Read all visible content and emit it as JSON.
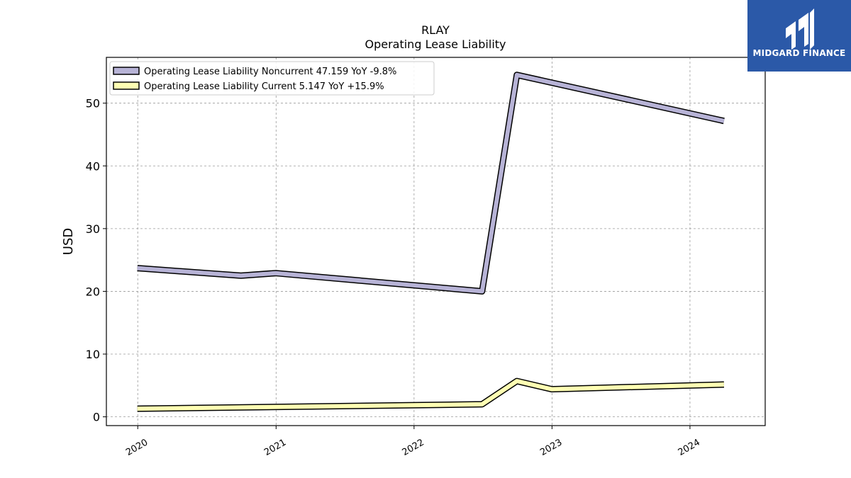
{
  "brand": {
    "name": "MIDGARD FINANCE",
    "logo_icon": "midgard-logo-icon",
    "background": "#2b59a8"
  },
  "chart_data": {
    "type": "line",
    "title": "RLAY",
    "subtitle": "Operating Lease Liability",
    "xlabel": "",
    "ylabel": "USD",
    "x_ticks": [
      "2020",
      "2021",
      "2022",
      "2023",
      "2024"
    ],
    "y_ticks": [
      0,
      10,
      20,
      30,
      40,
      50
    ],
    "xlim": [
      "2019-10-10",
      "2024-07-18"
    ],
    "ylim": [
      -1.4,
      57.3
    ],
    "grid": true,
    "legend_position": "top-left",
    "series": [
      {
        "name": "Operating Lease Liability Noncurrent",
        "legend_label": "Operating Lease Liability Noncurrent  47.159 YoY -9.8%",
        "color": "#b7b3d6",
        "points": [
          [
            "2019-12-31",
            23.7
          ],
          [
            "2020-09-30",
            22.5
          ],
          [
            "2020-12-31",
            22.9
          ],
          [
            "2022-06-30",
            20.0
          ],
          [
            "2022-09-30",
            54.5
          ],
          [
            "2024-03-31",
            47.159
          ]
        ]
      },
      {
        "name": "Operating Lease Liability Current",
        "legend_label": "Operating Lease Liability Current  5.147 YoY +15.9%",
        "color": "#ffffb3",
        "points": [
          [
            "2019-12-31",
            1.3
          ],
          [
            "2022-06-30",
            2.0
          ],
          [
            "2022-09-30",
            5.7
          ],
          [
            "2022-12-31",
            4.4
          ],
          [
            "2024-03-31",
            5.147
          ]
        ]
      }
    ]
  }
}
